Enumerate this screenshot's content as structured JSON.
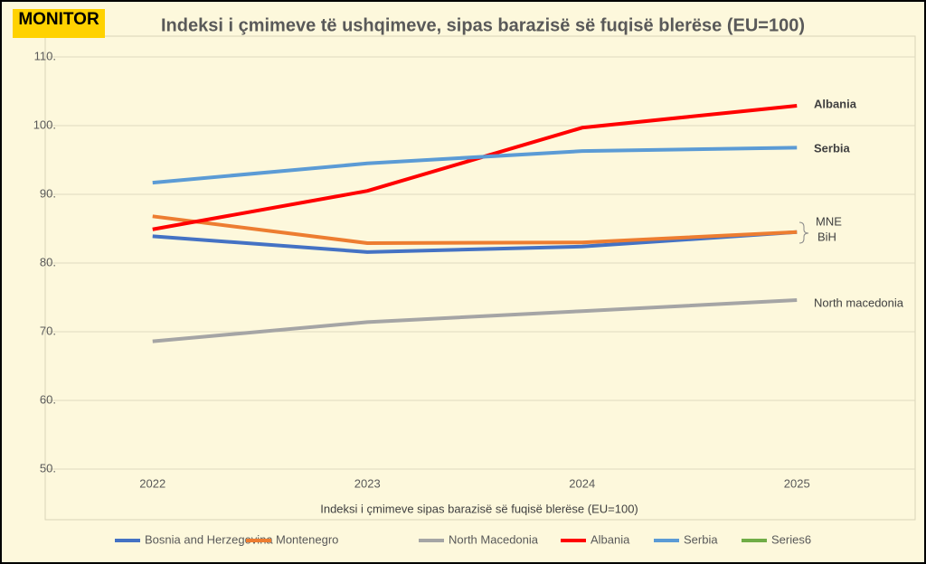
{
  "logo": "MONITOR",
  "chart_data": {
    "type": "line",
    "title": "Indeksi i çmimeve të ushqimeve, sipas barazisë së fuqisë blerëse (EU=100)",
    "x_label": "Indeksi i çmimeve sipas barazisë së fuqisë blerëse (EU=100)",
    "categories": [
      "2022",
      "2023",
      "2024",
      "2025"
    ],
    "series": [
      {
        "name": "Bosnia and Herzegovina",
        "color": "#4472c4",
        "values": [
          83.9,
          81.6,
          82.4,
          84.5
        ]
      },
      {
        "name": "Montenegro",
        "color": "#ed7d31",
        "values": [
          86.8,
          82.9,
          83.0,
          84.5
        ]
      },
      {
        "name": "North Macedonia",
        "color": "#a5a5a5",
        "values": [
          68.6,
          71.4,
          73.0,
          74.6
        ]
      },
      {
        "name": "Albania",
        "color": "#ff0000",
        "values": [
          84.9,
          90.5,
          99.7,
          102.9
        ]
      },
      {
        "name": "Serbia",
        "color": "#5b9bd5",
        "values": [
          91.7,
          94.5,
          96.3,
          96.8
        ]
      },
      {
        "name": "Series6",
        "color": "#70ad47",
        "values": [
          null,
          null,
          null,
          null
        ]
      }
    ],
    "annotations": [
      "Albania",
      "Serbia",
      "MNE",
      "BiH",
      "North macedonia"
    ],
    "ylim": [
      50,
      110
    ],
    "yticks": [
      {
        "value": 50,
        "label": "50."
      },
      {
        "value": 60,
        "label": "60."
      },
      {
        "value": 70,
        "label": "70."
      },
      {
        "value": 80,
        "label": "80."
      },
      {
        "value": 90,
        "label": "90."
      },
      {
        "value": 100,
        "label": "100."
      },
      {
        "value": 110,
        "label": "110."
      }
    ],
    "grid": true
  }
}
